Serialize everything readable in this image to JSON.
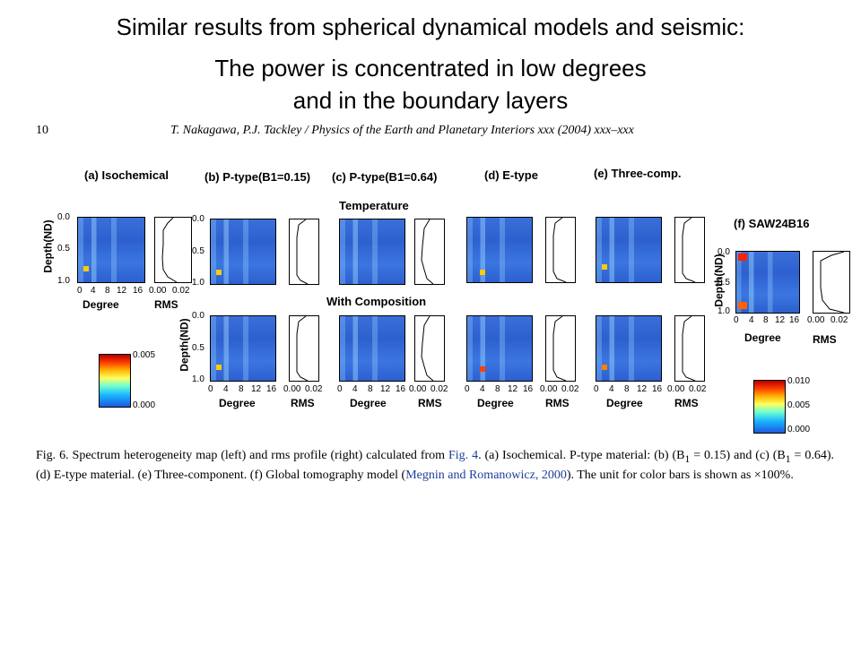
{
  "slide": {
    "title_line1": "Similar results from spherical dynamical models and seismic:",
    "title_line2": "The power is concentrated in low degrees",
    "title_line3": "and in the boundary layers"
  },
  "paper": {
    "page_number": "10",
    "running_head": "T. Nakagawa, P.J. Tackley / Physics of the Earth and Planetary Interiors xxx (2004) xxx–xxx"
  },
  "figure": {
    "panel_labels": [
      "(a) Isochemical",
      "(b) P-type(B1=0.15)",
      "(c) P-type(B1=0.64)",
      "(d) E-type",
      "(e) Three-comp.",
      "(f) SAW24B16"
    ],
    "section_temperature": "Temperature",
    "section_composition": "With Composition",
    "ylabel": "Depth(ND)",
    "xlabel_heatmap": "Degree",
    "xlabel_rms": "RMS",
    "y_ticks": [
      "0.0",
      "0.5",
      "1.0"
    ],
    "x_ticks_degree": [
      "0",
      "4",
      "8",
      "12",
      "16"
    ],
    "x_ticks_rms": [
      "0.00",
      "0.02"
    ],
    "colorbar_left_ticks": [
      "0.005",
      "0.000"
    ],
    "colorbar_right_ticks": [
      "0.010",
      "0.005",
      "0.000"
    ]
  },
  "caption": {
    "part1": "Fig. 6. Spectrum heterogeneity map (left) and rms profile (right) calculated from ",
    "link1": "Fig. 4",
    "part2": ". (a) Isochemical. P-type material: (b) (B",
    "sub1": "1",
    "part3": " = 0.15) and (c) (B",
    "sub2": "1",
    "part4": " = 0.64). (d) E-type material. (e) Three-component. (f) Global tomography model (",
    "link2": "Megnin and Romanowicz, 2000",
    "part5": "). The unit for color bars is shown as ×100%."
  },
  "colors": {
    "heatmap_base": "#2d60cf",
    "link": "#1e3e9c",
    "hotspot": "#ffcc00"
  }
}
